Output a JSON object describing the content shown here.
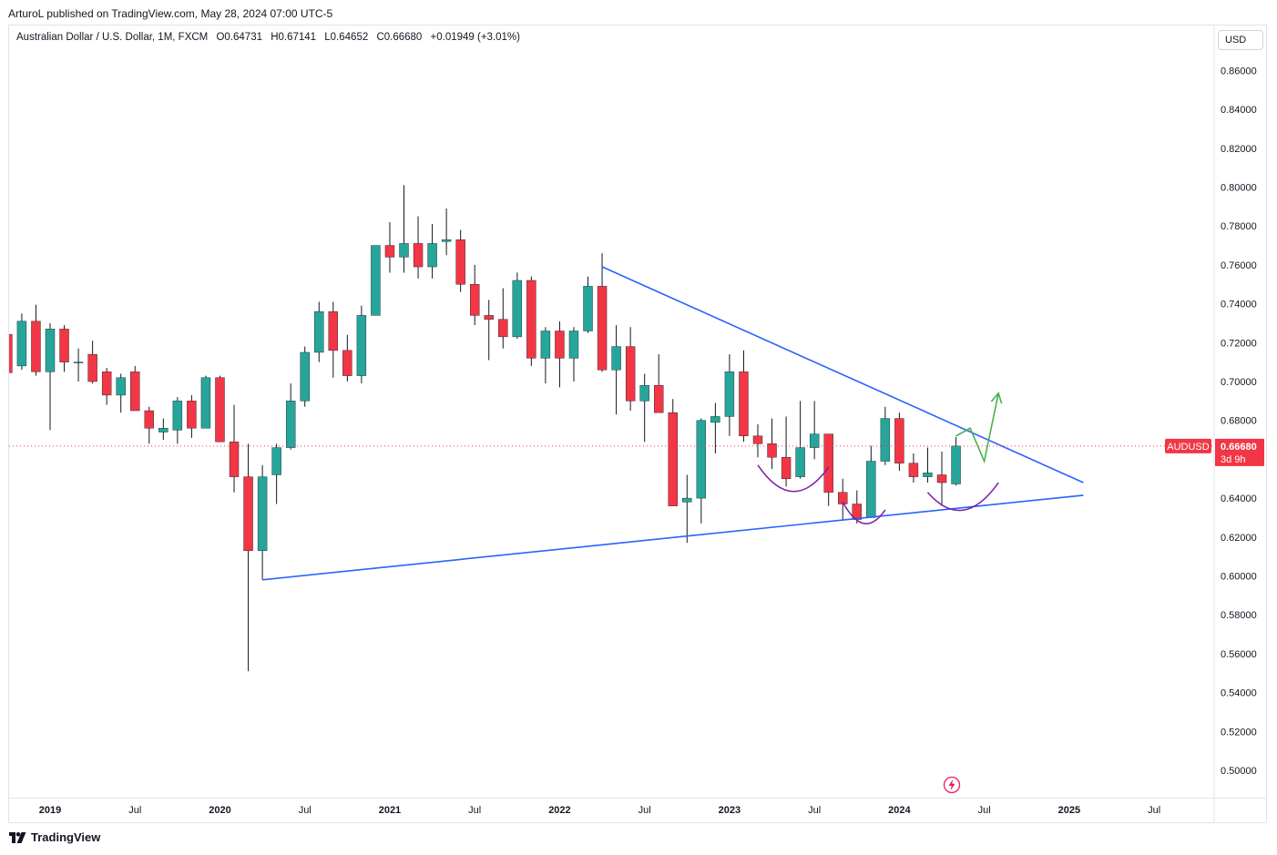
{
  "header": {
    "published_by": "ArturoL published on TradingView.com, May 28, 2024 07:00 UTC-5"
  },
  "legend": {
    "symbol": "Australian Dollar / U.S. Dollar, 1M, FXCM",
    "open": "O0.64731",
    "high": "H0.67141",
    "low": "L0.64652",
    "close": "C0.66680",
    "change": "+0.01949 (+3.01%)"
  },
  "currency_button": "USD",
  "footer": {
    "brand": "TradingView"
  },
  "colors": {
    "up": "#26a69a",
    "down": "#f23645",
    "trendline": "#2962ff",
    "arc": "#7b1fa2",
    "arrow": "#4caf50",
    "price_tag": "#f23645"
  },
  "chart_data": {
    "type": "candlestick",
    "title": "Australian Dollar / U.S. Dollar, 1M, FXCM",
    "ylim": [
      0.49,
      0.88
    ],
    "y_ticks": [
      "0.50000",
      "0.52000",
      "0.54000",
      "0.56000",
      "0.58000",
      "0.60000",
      "0.62000",
      "0.64000",
      "0.66000",
      "0.68000",
      "0.70000",
      "0.72000",
      "0.74000",
      "0.76000",
      "0.78000",
      "0.80000",
      "0.82000",
      "0.84000",
      "0.86000"
    ],
    "x_ticks": [
      {
        "label": "2019",
        "month": 0
      },
      {
        "label": "Jul",
        "month": 6
      },
      {
        "label": "2020",
        "month": 12
      },
      {
        "label": "Jul",
        "month": 18
      },
      {
        "label": "2021",
        "month": 24
      },
      {
        "label": "Jul",
        "month": 30
      },
      {
        "label": "2022",
        "month": 36
      },
      {
        "label": "Jul",
        "month": 42
      },
      {
        "label": "2023",
        "month": 48
      },
      {
        "label": "Jul",
        "month": 54
      },
      {
        "label": "2024",
        "month": 60
      },
      {
        "label": "Jul",
        "month": 66
      },
      {
        "label": "2025",
        "month": 72
      },
      {
        "label": "Jul",
        "month": 78
      }
    ],
    "last_price": {
      "symbol": "AUDUSD",
      "value": 0.6668,
      "label": "0.66680",
      "countdown": "3d 9h"
    },
    "candles": [
      {
        "m": -3,
        "o": 0.7242,
        "h": 0.729,
        "l": 0.702,
        "c": 0.7045
      },
      {
        "m": -2,
        "o": 0.708,
        "h": 0.735,
        "l": 0.706,
        "c": 0.731
      },
      {
        "m": -1,
        "o": 0.731,
        "h": 0.7395,
        "l": 0.703,
        "c": 0.705
      },
      {
        "m": 0,
        "o": 0.705,
        "h": 0.73,
        "l": 0.675,
        "c": 0.727
      },
      {
        "m": 1,
        "o": 0.727,
        "h": 0.729,
        "l": 0.705,
        "c": 0.71
      },
      {
        "m": 2,
        "o": 0.71,
        "h": 0.717,
        "l": 0.7,
        "c": 0.71
      },
      {
        "m": 3,
        "o": 0.714,
        "h": 0.721,
        "l": 0.699,
        "c": 0.7
      },
      {
        "m": 4,
        "o": 0.705,
        "h": 0.707,
        "l": 0.688,
        "c": 0.693
      },
      {
        "m": 5,
        "o": 0.693,
        "h": 0.704,
        "l": 0.684,
        "c": 0.702
      },
      {
        "m": 6,
        "o": 0.705,
        "h": 0.708,
        "l": 0.685,
        "c": 0.685
      },
      {
        "m": 7,
        "o": 0.685,
        "h": 0.687,
        "l": 0.668,
        "c": 0.676
      },
      {
        "m": 8,
        "o": 0.674,
        "h": 0.681,
        "l": 0.67,
        "c": 0.676
      },
      {
        "m": 9,
        "o": 0.675,
        "h": 0.692,
        "l": 0.668,
        "c": 0.69
      },
      {
        "m": 10,
        "o": 0.69,
        "h": 0.693,
        "l": 0.671,
        "c": 0.676
      },
      {
        "m": 11,
        "o": 0.676,
        "h": 0.703,
        "l": 0.676,
        "c": 0.702
      },
      {
        "m": 12,
        "o": 0.702,
        "h": 0.703,
        "l": 0.669,
        "c": 0.669
      },
      {
        "m": 13,
        "o": 0.669,
        "h": 0.688,
        "l": 0.643,
        "c": 0.651
      },
      {
        "m": 14,
        "o": 0.651,
        "h": 0.668,
        "l": 0.551,
        "c": 0.613
      },
      {
        "m": 15,
        "o": 0.613,
        "h": 0.657,
        "l": 0.598,
        "c": 0.651
      },
      {
        "m": 16,
        "o": 0.652,
        "h": 0.668,
        "l": 0.637,
        "c": 0.666
      },
      {
        "m": 17,
        "o": 0.666,
        "h": 0.699,
        "l": 0.665,
        "c": 0.69
      },
      {
        "m": 18,
        "o": 0.69,
        "h": 0.718,
        "l": 0.687,
        "c": 0.715
      },
      {
        "m": 19,
        "o": 0.715,
        "h": 0.741,
        "l": 0.71,
        "c": 0.736
      },
      {
        "m": 20,
        "o": 0.736,
        "h": 0.741,
        "l": 0.702,
        "c": 0.716
      },
      {
        "m": 21,
        "o": 0.716,
        "h": 0.724,
        "l": 0.7,
        "c": 0.703
      },
      {
        "m": 22,
        "o": 0.703,
        "h": 0.739,
        "l": 0.699,
        "c": 0.734
      },
      {
        "m": 23,
        "o": 0.734,
        "h": 0.77,
        "l": 0.734,
        "c": 0.77
      },
      {
        "m": 24,
        "o": 0.77,
        "h": 0.782,
        "l": 0.756,
        "c": 0.764
      },
      {
        "m": 25,
        "o": 0.764,
        "h": 0.801,
        "l": 0.756,
        "c": 0.771
      },
      {
        "m": 26,
        "o": 0.771,
        "h": 0.785,
        "l": 0.753,
        "c": 0.759
      },
      {
        "m": 27,
        "o": 0.759,
        "h": 0.781,
        "l": 0.753,
        "c": 0.771
      },
      {
        "m": 28,
        "o": 0.772,
        "h": 0.789,
        "l": 0.765,
        "c": 0.773
      },
      {
        "m": 29,
        "o": 0.773,
        "h": 0.778,
        "l": 0.746,
        "c": 0.75
      },
      {
        "m": 30,
        "o": 0.75,
        "h": 0.76,
        "l": 0.729,
        "c": 0.734
      },
      {
        "m": 31,
        "o": 0.734,
        "h": 0.742,
        "l": 0.711,
        "c": 0.732
      },
      {
        "m": 32,
        "o": 0.732,
        "h": 0.748,
        "l": 0.717,
        "c": 0.723
      },
      {
        "m": 33,
        "o": 0.723,
        "h": 0.756,
        "l": 0.722,
        "c": 0.752
      },
      {
        "m": 34,
        "o": 0.752,
        "h": 0.754,
        "l": 0.708,
        "c": 0.712
      },
      {
        "m": 35,
        "o": 0.712,
        "h": 0.728,
        "l": 0.699,
        "c": 0.726
      },
      {
        "m": 36,
        "o": 0.726,
        "h": 0.731,
        "l": 0.697,
        "c": 0.712
      },
      {
        "m": 37,
        "o": 0.712,
        "h": 0.728,
        "l": 0.7,
        "c": 0.726
      },
      {
        "m": 38,
        "o": 0.726,
        "h": 0.754,
        "l": 0.725,
        "c": 0.749
      },
      {
        "m": 39,
        "o": 0.749,
        "h": 0.766,
        "l": 0.705,
        "c": 0.706
      },
      {
        "m": 40,
        "o": 0.706,
        "h": 0.729,
        "l": 0.683,
        "c": 0.718
      },
      {
        "m": 41,
        "o": 0.718,
        "h": 0.728,
        "l": 0.685,
        "c": 0.69
      },
      {
        "m": 42,
        "o": 0.69,
        "h": 0.704,
        "l": 0.669,
        "c": 0.698
      },
      {
        "m": 43,
        "o": 0.698,
        "h": 0.714,
        "l": 0.684,
        "c": 0.684
      },
      {
        "m": 44,
        "o": 0.684,
        "h": 0.691,
        "l": 0.636,
        "c": 0.636
      },
      {
        "m": 45,
        "o": 0.638,
        "h": 0.652,
        "l": 0.617,
        "c": 0.64
      },
      {
        "m": 46,
        "o": 0.64,
        "h": 0.681,
        "l": 0.627,
        "c": 0.68
      },
      {
        "m": 47,
        "o": 0.679,
        "h": 0.689,
        "l": 0.663,
        "c": 0.682
      },
      {
        "m": 48,
        "o": 0.682,
        "h": 0.714,
        "l": 0.672,
        "c": 0.705
      },
      {
        "m": 49,
        "o": 0.705,
        "h": 0.716,
        "l": 0.669,
        "c": 0.672
      },
      {
        "m": 50,
        "o": 0.672,
        "h": 0.678,
        "l": 0.661,
        "c": 0.668
      },
      {
        "m": 51,
        "o": 0.668,
        "h": 0.681,
        "l": 0.655,
        "c": 0.661
      },
      {
        "m": 52,
        "o": 0.661,
        "h": 0.682,
        "l": 0.646,
        "c": 0.65
      },
      {
        "m": 53,
        "o": 0.651,
        "h": 0.69,
        "l": 0.65,
        "c": 0.666
      },
      {
        "m": 54,
        "o": 0.666,
        "h": 0.69,
        "l": 0.66,
        "c": 0.673
      },
      {
        "m": 55,
        "o": 0.673,
        "h": 0.673,
        "l": 0.636,
        "c": 0.643
      },
      {
        "m": 56,
        "o": 0.643,
        "h": 0.65,
        "l": 0.629,
        "c": 0.637
      },
      {
        "m": 57,
        "o": 0.637,
        "h": 0.644,
        "l": 0.627,
        "c": 0.629
      },
      {
        "m": 58,
        "o": 0.63,
        "h": 0.667,
        "l": 0.63,
        "c": 0.659
      },
      {
        "m": 59,
        "o": 0.659,
        "h": 0.687,
        "l": 0.657,
        "c": 0.681
      },
      {
        "m": 60,
        "o": 0.681,
        "h": 0.684,
        "l": 0.654,
        "c": 0.658
      },
      {
        "m": 61,
        "o": 0.658,
        "h": 0.663,
        "l": 0.648,
        "c": 0.651
      },
      {
        "m": 62,
        "o": 0.651,
        "h": 0.666,
        "l": 0.648,
        "c": 0.653
      },
      {
        "m": 63,
        "o": 0.652,
        "h": 0.664,
        "l": 0.636,
        "c": 0.648
      },
      {
        "m": 64,
        "o": 0.6473,
        "h": 0.6714,
        "l": 0.6465,
        "c": 0.6668
      }
    ],
    "annotations": {
      "trendline_upper": {
        "from": {
          "m": 39,
          "y": 0.759
        },
        "to": {
          "m": 73,
          "y": 0.648
        }
      },
      "trendline_lower": {
        "from": {
          "m": 15,
          "y": 0.598
        },
        "to": {
          "m": 73,
          "y": 0.6415
        }
      },
      "arcs": [
        {
          "from": {
            "m": 50,
            "y": 0.657
          },
          "to": {
            "m": 55,
            "y": 0.656
          },
          "depth": 0.016
        },
        {
          "from": {
            "m": 56,
            "y": 0.638
          },
          "to": {
            "m": 59,
            "y": 0.634
          },
          "depth": 0.01
        },
        {
          "from": {
            "m": 62,
            "y": 0.643
          },
          "to": {
            "m": 67,
            "y": 0.648
          },
          "depth": 0.013
        }
      ],
      "projection_arrow": [
        {
          "m": 64,
          "y": 0.672
        },
        {
          "m": 65,
          "y": 0.676
        },
        {
          "m": 66,
          "y": 0.659
        },
        {
          "m": 67,
          "y": 0.694
        }
      ]
    }
  }
}
